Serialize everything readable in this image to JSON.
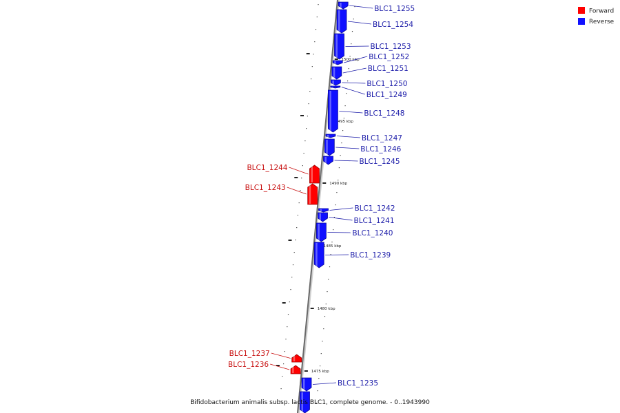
{
  "legend": [
    {
      "label": "Forward",
      "color": "#ff0000"
    },
    {
      "label": "Reverse",
      "color": "#1010ff"
    }
  ],
  "caption": "Bifidobacterium animalis subsp. lactis BLC1, complete genome. - 0..1943990",
  "kbp_ticks": [
    "1500 kbp",
    "1495 kbp",
    "1490 kbp",
    "1485 kbp",
    "1480 kbp",
    "1475 kbp"
  ],
  "genes": [
    {
      "name": "BLC1_1255",
      "strand": "reverse"
    },
    {
      "name": "BLC1_1254",
      "strand": "reverse"
    },
    {
      "name": "BLC1_1253",
      "strand": "reverse"
    },
    {
      "name": "BLC1_1252",
      "strand": "reverse"
    },
    {
      "name": "BLC1_1251",
      "strand": "reverse"
    },
    {
      "name": "BLC1_1250",
      "strand": "reverse"
    },
    {
      "name": "BLC1_1249",
      "strand": "reverse"
    },
    {
      "name": "BLC1_1248",
      "strand": "reverse"
    },
    {
      "name": "BLC1_1247",
      "strand": "reverse"
    },
    {
      "name": "BLC1_1246",
      "strand": "reverse"
    },
    {
      "name": "BLC1_1245",
      "strand": "reverse"
    },
    {
      "name": "BLC1_1244",
      "strand": "forward"
    },
    {
      "name": "BLC1_1243",
      "strand": "forward"
    },
    {
      "name": "BLC1_1242",
      "strand": "reverse"
    },
    {
      "name": "BLC1_1241",
      "strand": "reverse"
    },
    {
      "name": "BLC1_1240",
      "strand": "reverse"
    },
    {
      "name": "BLC1_1239",
      "strand": "reverse"
    },
    {
      "name": "BLC1_1237",
      "strand": "forward"
    },
    {
      "name": "BLC1_1236",
      "strand": "forward"
    },
    {
      "name": "BLC1_1235",
      "strand": "reverse"
    },
    {
      "name": "",
      "strand": "reverse"
    }
  ]
}
